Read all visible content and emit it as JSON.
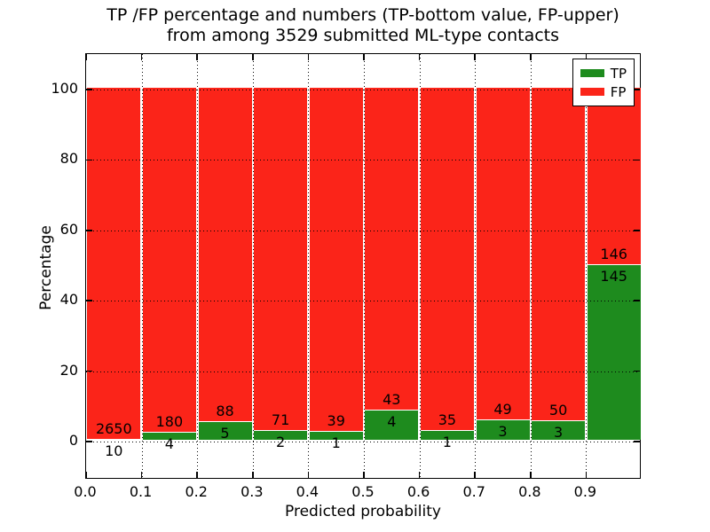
{
  "title": {
    "line1": "TP /FP percentage and numbers (TP-bottom value, FP-upper)",
    "line2": "from among 3529 submitted ML-type contacts"
  },
  "axes": {
    "xlabel": "Predicted probability",
    "ylabel": "Percentage",
    "xtick_labels": [
      "0.0",
      "0.1",
      "0.2",
      "0.3",
      "0.4",
      "0.5",
      "0.6",
      "0.7",
      "0.8",
      "0.9"
    ],
    "ytick_labels": [
      "0",
      "20",
      "40",
      "60",
      "80",
      "100"
    ]
  },
  "legend": {
    "items": [
      {
        "label": "TP",
        "color": "#1e8b1e"
      },
      {
        "label": "FP",
        "color": "#fb2419"
      }
    ]
  },
  "colors": {
    "tp": "#1e8b1e",
    "fp": "#fb2419",
    "grid": "#000000",
    "background": "#ffffff",
    "bar_edge": "#ffffff"
  },
  "chart_data": {
    "type": "bar",
    "stacked": true,
    "percent_normalized": true,
    "title": "TP /FP percentage and numbers (TP-bottom value, FP-upper) from among 3529 submitted ML-type contacts",
    "xlabel": "Predicted probability",
    "ylabel": "Percentage",
    "total_contacts": 3529,
    "bins": {
      "start": 0.0,
      "bin_width": 0.1,
      "count": 10
    },
    "categories": [
      "0.0-0.1",
      "0.1-0.2",
      "0.2-0.3",
      "0.3-0.4",
      "0.4-0.5",
      "0.5-0.6",
      "0.6-0.7",
      "0.7-0.8",
      "0.8-0.9",
      "0.9-1.0"
    ],
    "series": [
      {
        "name": "TP",
        "color": "#1e8b1e",
        "counts": [
          10,
          4,
          5,
          2,
          1,
          4,
          1,
          3,
          3,
          145
        ]
      },
      {
        "name": "FP",
        "color": "#fb2419",
        "counts": [
          2650,
          180,
          88,
          71,
          39,
          43,
          35,
          49,
          50,
          146
        ]
      }
    ],
    "bar_height_percent_each_bin": 100,
    "xticks": [
      0.0,
      0.1,
      0.2,
      0.3,
      0.4,
      0.5,
      0.6,
      0.7,
      0.8,
      0.9
    ],
    "yticks": [
      0,
      20,
      40,
      60,
      80,
      100
    ],
    "xlim": [
      0.0,
      1.0
    ],
    "ylim": [
      -11,
      110
    ],
    "grid": "dotted",
    "legend_position": "upper right"
  }
}
